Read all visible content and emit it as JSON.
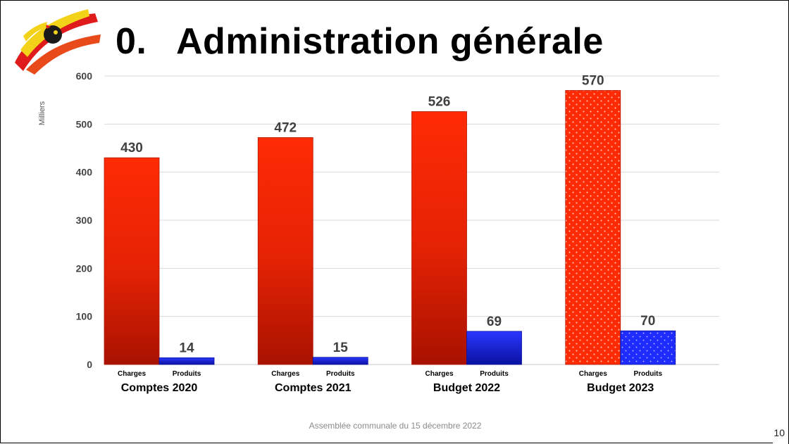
{
  "slide": {
    "title_number": "0.",
    "title_text": "Administration générale",
    "footer": "Assemblée communale du 15 décembre 2022",
    "page_number": "10"
  },
  "colors": {
    "charges": "#ff2b05",
    "charges_dark": "#a81200",
    "produits": "#1f2cff",
    "produits_dark": "#0a12a0",
    "grid": "#d9d9d9"
  },
  "chart_data": {
    "type": "bar",
    "unit_label": "Milliers",
    "ylim": [
      0,
      600
    ],
    "yticks": [
      0,
      100,
      200,
      300,
      400,
      500,
      600
    ],
    "grid": true,
    "categories": [
      "Comptes 2020",
      "Comptes 2021",
      "Budget 2022",
      "Budget 2023"
    ],
    "series": [
      {
        "name": "Charges",
        "values": [
          430,
          472,
          526,
          570
        ]
      },
      {
        "name": "Produits",
        "values": [
          14,
          15,
          69,
          70
        ]
      }
    ],
    "data_labels": true,
    "dotted_category": "Budget 2023"
  }
}
